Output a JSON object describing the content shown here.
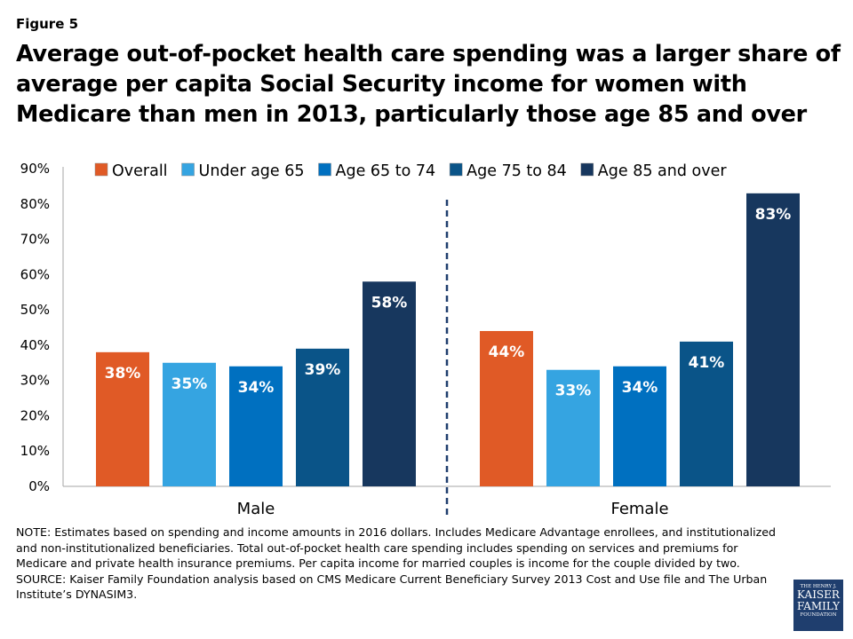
{
  "figure_label": "Figure 5",
  "title": "Average out-of-pocket health care spending was a larger share of average per capita Social Security income for women with Medicare than men in 2013, particularly those age 85 and over",
  "notes": {
    "note": "NOTE: Estimates based on spending and income amounts in 2016 dollars. Includes Medicare Advantage enrollees, and institutionalized and non-institutionalized beneficiaries. Total out-of-pocket  health care spending includes spending on services and premiums for Medicare and private health insurance premiums.  Per capita income for married couples is income for the couple divided by two.",
    "source": "SOURCE: Kaiser Family Foundation  analysis based on CMS Medicare Current Beneficiary Survey 2013 Cost and Use file and The Urban Institute’s DYNASIM3."
  },
  "logo": {
    "line1": "THE HENRY J.",
    "line2": "KAISER",
    "line3": "FAMILY",
    "line4": "FOUNDATION"
  },
  "chart_data": {
    "type": "bar",
    "categories": [
      "Male",
      "Female"
    ],
    "series": [
      {
        "name": "Overall",
        "color": "#E05A26",
        "values": [
          38,
          44
        ]
      },
      {
        "name": "Under age 65",
        "color": "#35A4E1",
        "values": [
          35,
          33
        ]
      },
      {
        "name": "Age 65 to 74",
        "color": "#0070C0",
        "values": [
          34,
          34
        ]
      },
      {
        "name": "Age 75 to 84",
        "color": "#0A5488",
        "values": [
          39,
          41
        ]
      },
      {
        "name": "Age 85 and over",
        "color": "#17375E",
        "values": [
          58,
          83
        ]
      }
    ],
    "ylim": [
      0,
      90
    ],
    "yticks": [
      "0%",
      "10%",
      "20%",
      "30%",
      "40%",
      "50%",
      "60%",
      "70%",
      "80%",
      "90%"
    ],
    "data_labels": [
      [
        "38%",
        "44%"
      ],
      [
        "35%",
        "33%"
      ],
      [
        "34%",
        "34%"
      ],
      [
        "39%",
        "41%"
      ],
      [
        "58%",
        "83%"
      ]
    ],
    "legend_position": "top",
    "grid": false,
    "group_divider": "dashed"
  }
}
